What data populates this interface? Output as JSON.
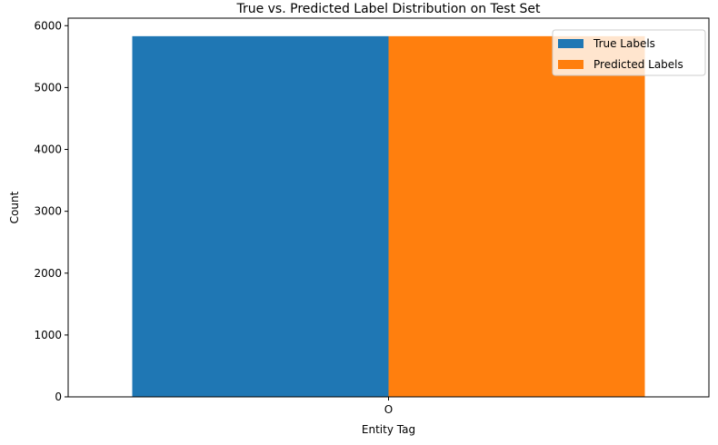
{
  "chart_data": {
    "type": "bar",
    "title": "True vs. Predicted Label Distribution on Test Set",
    "xlabel": "Entity Tag",
    "ylabel": "Count",
    "categories": [
      "O"
    ],
    "series": [
      {
        "name": "True Labels",
        "values": [
          5830
        ],
        "color": "#1f77b4"
      },
      {
        "name": "Predicted Labels",
        "values": [
          5830
        ],
        "color": "#ff7f0e"
      }
    ],
    "ylim": [
      0,
      6121.5
    ],
    "yticks": [
      0,
      1000,
      2000,
      3000,
      4000,
      5000,
      6000
    ],
    "ytick_labels": [
      "0",
      "1000",
      "2000",
      "3000",
      "4000",
      "5000",
      "6000"
    ],
    "legend": {
      "placement": "top-right",
      "entries": [
        "True Labels",
        "Predicted Labels"
      ]
    },
    "grid": false
  }
}
